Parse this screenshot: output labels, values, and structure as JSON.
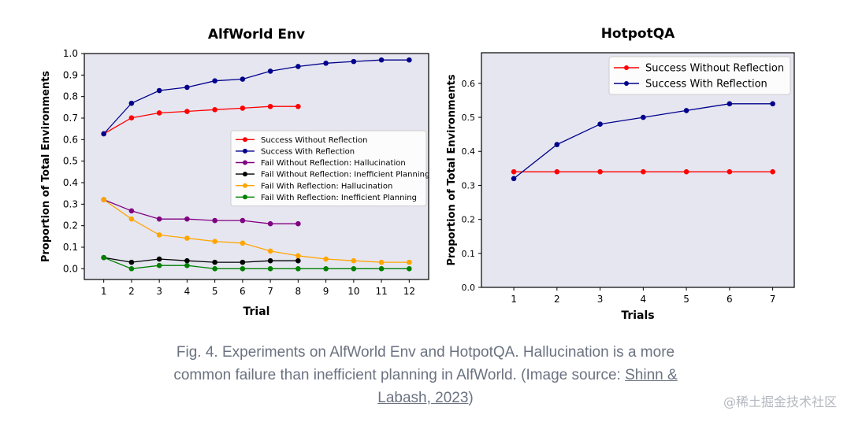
{
  "chart_data": [
    {
      "type": "line",
      "title": "AlfWorld Env",
      "xlabel": "Trial",
      "ylabel": "Proportion of Total Environments",
      "xlim": [
        0.3,
        12.7
      ],
      "ylim": [
        -0.05,
        1.0
      ],
      "xticks": [
        1,
        2,
        3,
        4,
        5,
        6,
        7,
        8,
        9,
        10,
        11,
        12
      ],
      "yticks": [
        "0.0",
        "0.1",
        "0.2",
        "0.3",
        "0.4",
        "0.5",
        "0.6",
        "0.7",
        "0.8",
        "0.9",
        "1.0"
      ],
      "legend_position": "center-right",
      "series": [
        {
          "name": "Success Without Reflection",
          "color": "#ff0000",
          "x": [
            1,
            2,
            3,
            4,
            5,
            6,
            7,
            8
          ],
          "values": [
            0.627,
            0.701,
            0.724,
            0.731,
            0.739,
            0.746,
            0.754,
            0.754
          ]
        },
        {
          "name": "Success With Reflection",
          "color": "#00008b",
          "x": [
            1,
            2,
            3,
            4,
            5,
            6,
            7,
            8,
            9,
            10,
            11,
            12
          ],
          "values": [
            0.627,
            0.769,
            0.828,
            0.843,
            0.873,
            0.881,
            0.918,
            0.94,
            0.955,
            0.963,
            0.97,
            0.97
          ]
        },
        {
          "name": "Fail Without Reflection: Hallucination",
          "color": "#800080",
          "x": [
            1,
            2,
            3,
            4,
            5,
            6,
            7,
            8
          ],
          "values": [
            0.321,
            0.269,
            0.231,
            0.231,
            0.224,
            0.224,
            0.209,
            0.209
          ]
        },
        {
          "name": "Fail Without Reflection: Inefficient Planning",
          "color": "#000000",
          "x": [
            1,
            2,
            3,
            4,
            5,
            6,
            7,
            8
          ],
          "values": [
            0.052,
            0.03,
            0.045,
            0.037,
            0.03,
            0.03,
            0.037,
            0.037
          ]
        },
        {
          "name": "Fail With Reflection: Hallucination",
          "color": "#ffa500",
          "x": [
            1,
            2,
            3,
            4,
            5,
            6,
            7,
            8,
            9,
            10,
            11,
            12
          ],
          "values": [
            0.321,
            0.231,
            0.157,
            0.142,
            0.127,
            0.119,
            0.082,
            0.06,
            0.045,
            0.037,
            0.03,
            0.03
          ]
        },
        {
          "name": "Fail With Reflection: Inefficient Planning",
          "color": "#008000",
          "x": [
            1,
            2,
            3,
            4,
            5,
            6,
            7,
            8,
            9,
            10,
            11,
            12
          ],
          "values": [
            0.052,
            0.0,
            0.015,
            0.015,
            0.0,
            0.0,
            0.0,
            0.0,
            0.0,
            0.0,
            0.0,
            0.0
          ]
        }
      ]
    },
    {
      "type": "line",
      "title": "HotpotQA",
      "xlabel": "Trials",
      "ylabel": "Proportion of Total Environments",
      "xlim": [
        0.25,
        7.5
      ],
      "ylim": [
        0.0,
        0.69
      ],
      "xticks": [
        1,
        2,
        3,
        4,
        5,
        6,
        7
      ],
      "yticks": [
        "0.0",
        "0.1",
        "0.2",
        "0.3",
        "0.4",
        "0.5",
        "0.6"
      ],
      "legend_position": "top-right",
      "series": [
        {
          "name": "Success Without Reflection",
          "color": "#ff0000",
          "x": [
            1,
            2,
            3,
            4,
            5,
            6,
            7
          ],
          "values": [
            0.34,
            0.34,
            0.34,
            0.34,
            0.34,
            0.34,
            0.34
          ]
        },
        {
          "name": "Success With Reflection",
          "color": "#00008b",
          "x": [
            1,
            2,
            3,
            4,
            5,
            6,
            7
          ],
          "values": [
            0.32,
            0.42,
            0.48,
            0.5,
            0.52,
            0.54,
            0.54
          ]
        }
      ]
    }
  ],
  "caption": {
    "line1": "Fig. 4. Experiments on AlfWorld Env and HotpotQA. Hallucination is a more",
    "line2": "common failure than inefficient planning in AlfWorld. (Image source: ",
    "link1": "Shinn &",
    "link2": "Labash, 2023",
    "closing": ")"
  },
  "watermark": "@稀土掘金技术社区"
}
